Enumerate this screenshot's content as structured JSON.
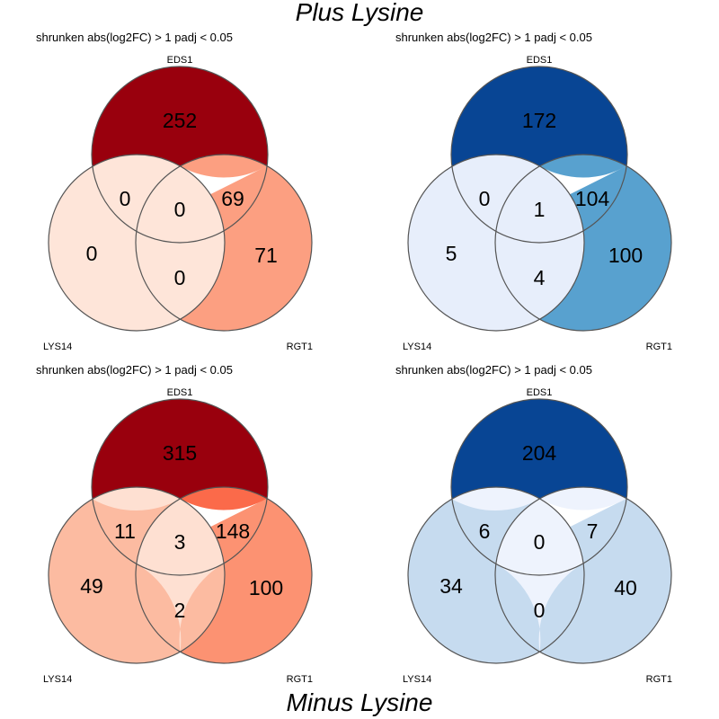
{
  "titles": {
    "top": "Plus Lysine",
    "bottom": "Minus Lysine"
  },
  "panels": [
    {
      "subtitle": "shrunken abs(log2FC) > 1 padj < 0.05",
      "sets": [
        "EDS1",
        "LYS14",
        "RGT1"
      ],
      "counts": {
        "EDS1_only": 252,
        "LYS14_only": 0,
        "RGT1_only": 71,
        "EDS1_LYS14": 0,
        "EDS1_RGT1": 69,
        "LYS14_RGT1": 0,
        "all": 0
      },
      "colors": {
        "EDS1_only": "#99000d",
        "LYS14_only": "#fee5d9",
        "RGT1_only": "#fc9f81",
        "EDS1_LYS14": "#fee5d9",
        "EDS1_RGT1": "#fc9f81",
        "LYS14_RGT1": "#fee5d9",
        "all": "#fee5d9"
      }
    },
    {
      "subtitle": "shrunken abs(log2FC) > 1 padj < 0.05",
      "sets": [
        "EDS1",
        "LYS14",
        "RGT1"
      ],
      "counts": {
        "EDS1_only": 172,
        "LYS14_only": 5,
        "RGT1_only": 100,
        "EDS1_LYS14": 0,
        "EDS1_RGT1": 104,
        "LYS14_RGT1": 4,
        "all": 1
      },
      "colors": {
        "EDS1_only": "#084594",
        "LYS14_only": "#e7eefb",
        "RGT1_only": "#58a1cf",
        "EDS1_LYS14": "#e7eefb",
        "EDS1_RGT1": "#58a1cf",
        "LYS14_RGT1": "#e7eefb",
        "all": "#e7eefb"
      }
    },
    {
      "subtitle": "shrunken abs(log2FC) > 1 padj < 0.05",
      "sets": [
        "EDS1",
        "LYS14",
        "RGT1"
      ],
      "counts": {
        "EDS1_only": 315,
        "LYS14_only": 49,
        "RGT1_only": 100,
        "EDS1_LYS14": 11,
        "EDS1_RGT1": 148,
        "LYS14_RGT1": 2,
        "all": 3
      },
      "colors": {
        "EDS1_only": "#99000d",
        "LYS14_only": "#fcbba1",
        "RGT1_only": "#fc9272",
        "EDS1_LYS14": "#fee0d2",
        "EDS1_RGT1": "#fb6a4a",
        "LYS14_RGT1": "#fee0d2",
        "all": "#fee0d2"
      }
    },
    {
      "subtitle": "shrunken abs(log2FC) > 1 padj < 0.05",
      "sets": [
        "EDS1",
        "LYS14",
        "RGT1"
      ],
      "counts": {
        "EDS1_only": 204,
        "LYS14_only": 34,
        "RGT1_only": 40,
        "EDS1_LYS14": 6,
        "EDS1_RGT1": 7,
        "LYS14_RGT1": 0,
        "all": 0
      },
      "colors": {
        "EDS1_only": "#084594",
        "LYS14_only": "#c6dbef",
        "RGT1_only": "#c6dbef",
        "EDS1_LYS14": "#eef3fd",
        "EDS1_RGT1": "#eef3fd",
        "LYS14_RGT1": "#eef3fd",
        "all": "#eef3fd"
      }
    }
  ]
}
